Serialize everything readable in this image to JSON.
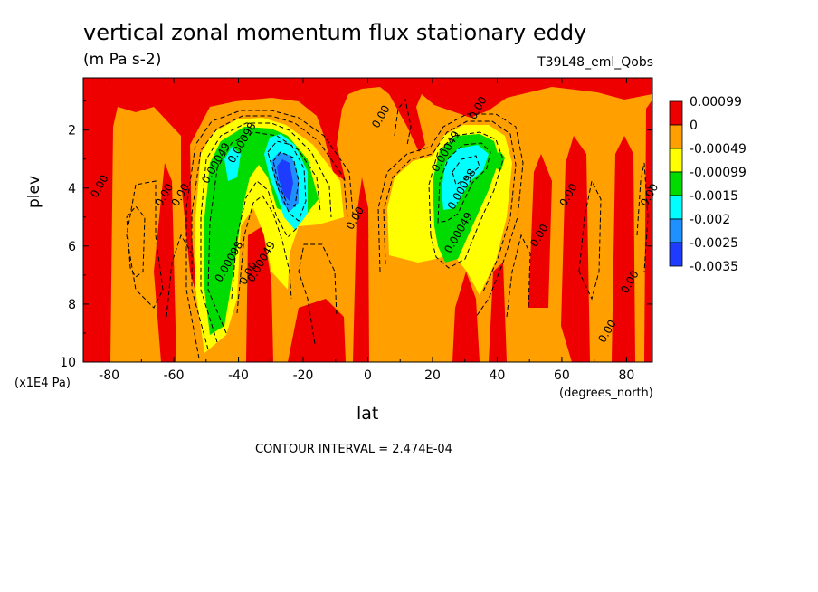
{
  "chart_data": {
    "type": "heatmap",
    "title": "vertical zonal momentum flux stationary eddy",
    "units": "(m Pa s-2)",
    "run_label": "T39L48_eml_Qobs",
    "xlabel": "lat",
    "x_units": "(degrees_north)",
    "ylabel": "plev",
    "y_units": "(x1E4 Pa)",
    "xlim": [
      -88,
      88
    ],
    "ylim": [
      10,
      0.2
    ],
    "x_ticks": [
      -80,
      -60,
      -40,
      -20,
      0,
      20,
      40,
      60,
      80
    ],
    "y_ticks": [
      2,
      4,
      6,
      8,
      10
    ],
    "contour_interval_text": "CONTOUR INTERVAL = 2.474E-04",
    "colorbar": [
      {
        "label": "0.00099",
        "color": "#ee0000"
      },
      {
        "label": "0",
        "color": "#ff9f00"
      },
      {
        "label": "-0.00049",
        "color": "#ffff00"
      },
      {
        "label": "-0.00099",
        "color": "#00dc00"
      },
      {
        "label": "-0.0015",
        "color": "#00ffff"
      },
      {
        "label": "-0.002",
        "color": "#1e90ff"
      },
      {
        "label": "-0.0025",
        "color": "#1e3cff"
      },
      {
        "label": "-0.0035",
        "color": ""
      }
    ],
    "contour_labels": [
      {
        "text": "0.00",
        "lat": -82,
        "plev": 4.0
      },
      {
        "text": "0.00",
        "lat": -62,
        "plev": 4.3
      },
      {
        "text": "0.00",
        "lat": -57,
        "plev": 4.3
      },
      {
        "text": "0.00049",
        "lat": -46,
        "plev": 3.2
      },
      {
        "text": "0.00098",
        "lat": -38,
        "plev": 2.5
      },
      {
        "text": "0.00098",
        "lat": -42,
        "plev": 6.6
      },
      {
        "text": "0.00049",
        "lat": -32,
        "plev": 6.6
      },
      {
        "text": "0.00",
        "lat": -36,
        "plev": 7.0
      },
      {
        "text": "0.00",
        "lat": 5,
        "plev": 1.6
      },
      {
        "text": "0.00",
        "lat": -3,
        "plev": 5.1
      },
      {
        "text": "0.00",
        "lat": 35,
        "plev": 1.3
      },
      {
        "text": "0.00049",
        "lat": 25,
        "plev": 2.8
      },
      {
        "text": "0.00098",
        "lat": 30,
        "plev": 4.1
      },
      {
        "text": "0.00049",
        "lat": 29,
        "plev": 5.6
      },
      {
        "text": "0.00",
        "lat": 54,
        "plev": 5.7
      },
      {
        "text": "0.00",
        "lat": 63,
        "plev": 4.3
      },
      {
        "text": "0.00",
        "lat": 82,
        "plev": 7.3
      },
      {
        "text": "0.00",
        "lat": 75,
        "plev": 9.0
      },
      {
        "text": "0.00",
        "lat": 88,
        "plev": 4.3
      }
    ]
  }
}
